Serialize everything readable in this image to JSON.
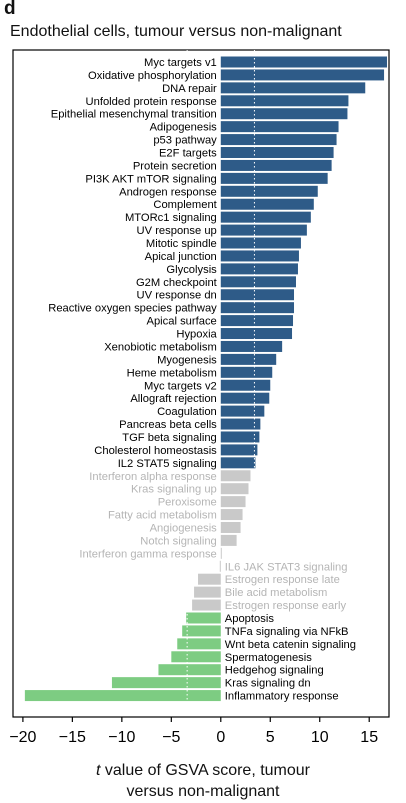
{
  "panel_letter": "d",
  "chart_data": {
    "type": "bar",
    "orientation": "horizontal",
    "title": "Endothelial cells, tumour versus non-malignant",
    "xlabel_var": "t",
    "xlabel_line1": "value of GSVA score, tumour",
    "xlabel_line2": "versus non-malignant",
    "xlim": [
      -21,
      17
    ],
    "xticks": [
      -20,
      -15,
      -10,
      -5,
      0,
      5,
      10,
      15
    ],
    "xtick_labels": [
      "−20",
      "−15",
      "−10",
      "−5",
      "0",
      "5",
      "10",
      "15"
    ],
    "threshold_lines": [
      -3.4,
      3.4
    ],
    "colors": {
      "up": "#2e5b88",
      "ns": "#c9c9c9",
      "down": "#7dcc82",
      "ns_text": "#b5b5b5"
    },
    "categories": [
      "Myc targets v1",
      "Oxidative phosphorylation",
      "DNA repair",
      "Unfolded protein response",
      "Epithelial mesenchymal transition",
      "Adipogenesis",
      "p53 pathway",
      "E2F targets",
      "Protein secretion",
      "PI3K AKT mTOR signaling",
      "Androgen response",
      "Complement",
      "MTORc1 signaling",
      "UV response up",
      "Mitotic spindle",
      "Apical junction",
      "Glycolysis",
      "G2M checkpoint",
      "UV response dn",
      "Reactive oxygen species pathway",
      "Apical surface",
      "Hypoxia",
      "Xenobiotic metabolism",
      "Myogenesis",
      "Heme metabolism",
      "Myc targets v2",
      "Allograft rejection",
      "Coagulation",
      "Pancreas beta cells",
      "TGF beta signaling",
      "Cholesterol homeostasis",
      "IL2 STAT5 signaling",
      "Interferon alpha response",
      "Kras signaling up",
      "Peroxisome",
      "Fatty acid metabolism",
      "Angiogenesis",
      "Notch signaling",
      "Interferon gamma response",
      "IL6 JAK STAT3 signaling",
      "Estrogen response late",
      "Bile acid metabolism",
      "Estrogen response early",
      "Apoptosis",
      "TNFa signaling via NFkB",
      "Wnt beta catenin signaling",
      "Spermatogenesis",
      "Hedgehog signaling",
      "Kras signaling dn",
      "Inflammatory response"
    ],
    "values": [
      16.8,
      16.5,
      14.6,
      12.9,
      12.8,
      11.9,
      11.7,
      11.4,
      11.2,
      10.8,
      9.8,
      9.4,
      9.1,
      8.7,
      8.1,
      7.9,
      7.8,
      7.6,
      7.4,
      7.4,
      7.3,
      7.2,
      6.2,
      5.6,
      5.2,
      5.0,
      4.9,
      4.4,
      4.0,
      3.9,
      3.7,
      3.5,
      3.0,
      2.8,
      2.5,
      2.2,
      2.0,
      1.6,
      0.1,
      -0.1,
      -2.3,
      -2.7,
      -2.9,
      -3.5,
      -3.9,
      -4.4,
      -5.0,
      -6.3,
      -11.0,
      -19.8
    ],
    "groups": [
      "up",
      "up",
      "up",
      "up",
      "up",
      "up",
      "up",
      "up",
      "up",
      "up",
      "up",
      "up",
      "up",
      "up",
      "up",
      "up",
      "up",
      "up",
      "up",
      "up",
      "up",
      "up",
      "up",
      "up",
      "up",
      "up",
      "up",
      "up",
      "up",
      "up",
      "up",
      "up",
      "ns",
      "ns",
      "ns",
      "ns",
      "ns",
      "ns",
      "ns",
      "ns",
      "ns",
      "ns",
      "ns",
      "down",
      "down",
      "down",
      "down",
      "down",
      "down",
      "down"
    ]
  }
}
